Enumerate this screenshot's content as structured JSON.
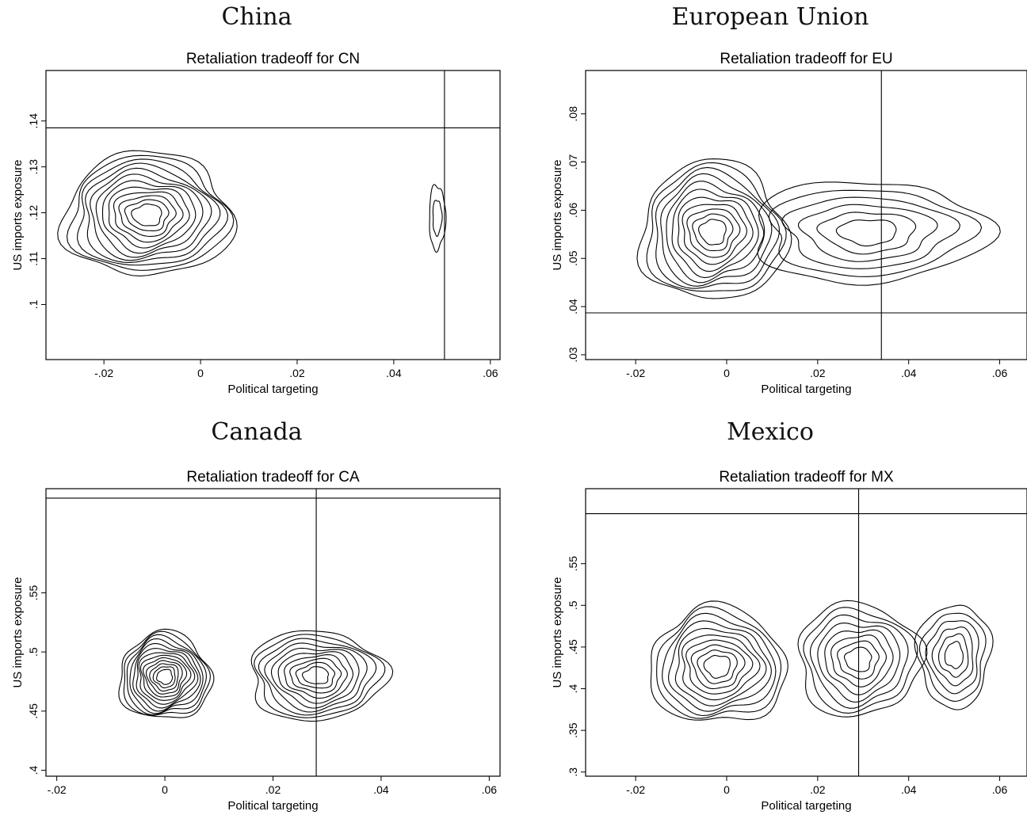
{
  "panels": [
    {
      "heading": "China",
      "chart_data": {
        "type": "contour",
        "title": "Retaliation tradeoff for CN",
        "xlabel": "Political targeting",
        "ylabel": "US imports exposure",
        "xlim": [
          -0.032,
          0.062
        ],
        "ylim": [
          0.088,
          0.151
        ],
        "xticks": [
          -0.02,
          0,
          0.02,
          0.04,
          0.06
        ],
        "xtick_labels": [
          "-.02",
          "0",
          ".02",
          ".04",
          ".06"
        ],
        "yticks": [
          0.1,
          0.11,
          0.12,
          0.13,
          0.14
        ],
        "ytick_labels": [
          ".1",
          ".11",
          ".12",
          ".13",
          ".14"
        ],
        "ref_vline_x": 0.0505,
        "ref_hline_y": 0.1385,
        "clusters": [
          {
            "cx": -0.011,
            "cy": 0.1195,
            "rx": 0.0175,
            "ry": 0.0135,
            "levels": 12
          },
          {
            "cx": 0.049,
            "cy": 0.119,
            "rx": 0.0017,
            "ry": 0.007,
            "levels": 2
          }
        ],
        "grid": false
      }
    },
    {
      "heading": "European Union",
      "chart_data": {
        "type": "contour",
        "title": "Retaliation tradeoff for EU",
        "xlabel": "Political targeting",
        "ylabel": "US imports exposure",
        "xlim": [
          -0.031,
          0.066
        ],
        "ylim": [
          0.029,
          0.089
        ],
        "xticks": [
          -0.02,
          0,
          0.02,
          0.04,
          0.06
        ],
        "xtick_labels": [
          "-.02",
          "0",
          ".02",
          ".04",
          ".06"
        ],
        "yticks": [
          0.03,
          0.04,
          0.05,
          0.06,
          0.07,
          0.08
        ],
        "ytick_labels": [
          ".03",
          ".04",
          ".05",
          ".06",
          ".07",
          ".08"
        ],
        "ref_vline_x": 0.034,
        "ref_hline_y": 0.0387,
        "clusters": [
          {
            "cx": -0.003,
            "cy": 0.0555,
            "rx": 0.016,
            "ry": 0.0145,
            "levels": 11
          },
          {
            "cx": 0.031,
            "cy": 0.0555,
            "rx": 0.026,
            "ry": 0.0105,
            "levels": 6
          }
        ],
        "grid": false
      }
    },
    {
      "heading": "Canada",
      "chart_data": {
        "type": "contour",
        "title": "Retaliation tradeoff for CA",
        "xlabel": "Political targeting",
        "ylabel": "US imports exposure",
        "xlim": [
          -0.022,
          0.062
        ],
        "ylim": [
          0.395,
          0.638
        ],
        "xticks": [
          -0.02,
          0,
          0.02,
          0.04,
          0.06
        ],
        "xtick_labels": [
          "-.02",
          "0",
          ".02",
          ".04",
          ".06"
        ],
        "yticks": [
          0.4,
          0.45,
          0.5,
          0.55
        ],
        "ytick_labels": [
          ".4",
          ".45",
          ".5",
          ".55"
        ],
        "ref_vline_x": 0.028,
        "ref_hline_y": 0.63,
        "clusters": [
          {
            "cx": 0.0,
            "cy": 0.479,
            "rx": 0.0085,
            "ry": 0.037,
            "levels": 13
          },
          {
            "cx": 0.028,
            "cy": 0.48,
            "rx": 0.0125,
            "ry": 0.038,
            "levels": 10
          }
        ],
        "grid": false
      }
    },
    {
      "heading": "Mexico",
      "chart_data": {
        "type": "contour",
        "title": "Retaliation tradeoff for MX",
        "xlabel": "Political targeting",
        "ylabel": "US imports exposure",
        "xlim": [
          -0.031,
          0.066
        ],
        "ylim": [
          0.295,
          0.64
        ],
        "xticks": [
          -0.02,
          0,
          0.02,
          0.04,
          0.06
        ],
        "xtick_labels": [
          "-.02",
          "0",
          ".02",
          ".04",
          ".06"
        ],
        "yticks": [
          0.3,
          0.35,
          0.4,
          0.45,
          0.5,
          0.55
        ],
        "ytick_labels": [
          ".3",
          ".35",
          ".4",
          ".45",
          ".5",
          ".55"
        ],
        "ref_vline_x": 0.029,
        "ref_hline_y": 0.61,
        "clusters": [
          {
            "cx": -0.002,
            "cy": 0.427,
            "rx": 0.015,
            "ry": 0.07,
            "levels": 10
          },
          {
            "cx": 0.029,
            "cy": 0.435,
            "rx": 0.0135,
            "ry": 0.068,
            "levels": 8
          },
          {
            "cx": 0.05,
            "cy": 0.44,
            "rx": 0.008,
            "ry": 0.062,
            "levels": 6
          }
        ],
        "grid": false
      }
    }
  ]
}
